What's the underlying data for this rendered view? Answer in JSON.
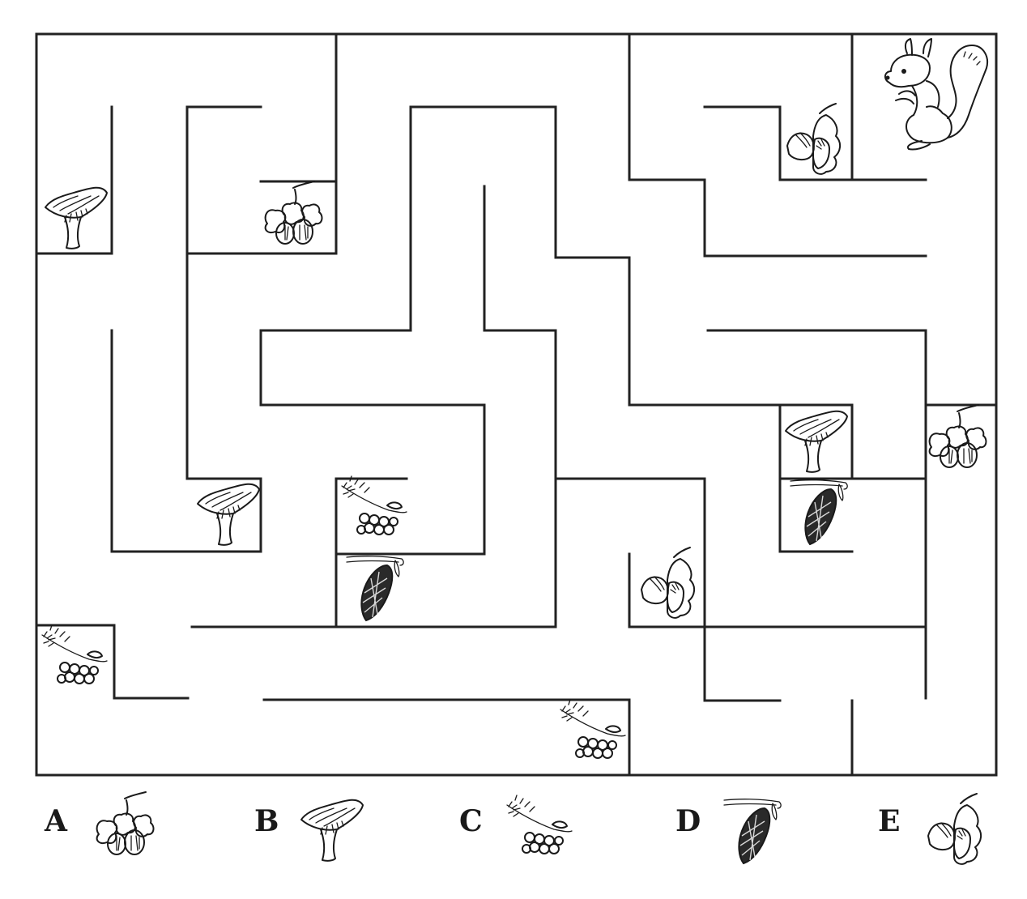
{
  "options": [
    {
      "letter": "A",
      "icon": "hazelnut-icon"
    },
    {
      "letter": "B",
      "icon": "mushroom-icon"
    },
    {
      "letter": "C",
      "icon": "rowan-berries-icon"
    },
    {
      "letter": "D",
      "icon": "pine-cone-icon"
    },
    {
      "letter": "E",
      "icon": "acorn-icon"
    }
  ],
  "maze": {
    "start_character": "squirrel-icon",
    "item_icons": [
      "mushroom-icon",
      "hazelnut-icon",
      "acorn-icon",
      "mushroom-icon",
      "hazelnut-icon",
      "rowan-berries-icon",
      "mushroom-icon",
      "pine-cone-icon",
      "pine-cone-icon",
      "acorn-icon",
      "rowan-berries-icon",
      "rowan-berries-icon"
    ]
  }
}
